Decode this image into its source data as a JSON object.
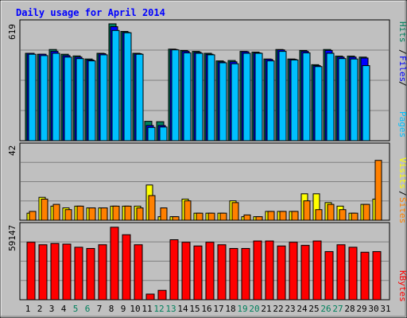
{
  "chart_data": [
    {
      "type": "bar",
      "panel": "hits-files-pages",
      "title": "Daily usage for April 2014",
      "ymax_label": "619",
      "ylim": [
        0,
        619
      ],
      "grid": true,
      "legend_placement": "right",
      "legend": [
        {
          "name": "Hits",
          "color": "#00805c"
        },
        {
          "name": "Files",
          "color": "#0000ff"
        },
        {
          "name": "Pages",
          "color": "#00c0ff"
        }
      ],
      "categories": [
        "1",
        "2",
        "3",
        "4",
        "5",
        "6",
        "7",
        "8",
        "9",
        "10",
        "11",
        "12",
        "13",
        "14",
        "15",
        "16",
        "17",
        "18",
        "19",
        "20",
        "21",
        "22",
        "23",
        "24",
        "25",
        "26",
        "27",
        "28",
        "29",
        "30",
        "31"
      ],
      "series": [
        {
          "name": "Hits",
          "color": "#00805c",
          "values": [
            460,
            455,
            480,
            455,
            446,
            430,
            460,
            615,
            575,
            460,
            102,
            100,
            482,
            475,
            470,
            460,
            420,
            422,
            470,
            466,
            430,
            480,
            430,
            475,
            400,
            480,
            445,
            445,
            440,
            null,
            null
          ]
        },
        {
          "name": "Files",
          "color": "#0000ff",
          "values": [
            460,
            455,
            470,
            448,
            440,
            425,
            458,
            600,
            570,
            458,
            80,
            80,
            480,
            470,
            465,
            455,
            415,
            415,
            468,
            462,
            428,
            478,
            428,
            470,
            395,
            475,
            440,
            440,
            435,
            null,
            null
          ]
        },
        {
          "name": "Pages",
          "color": "#00c0ff",
          "values": [
            455,
            448,
            460,
            440,
            432,
            420,
            452,
            580,
            568,
            455,
            70,
            72,
            478,
            462,
            460,
            452,
            410,
            405,
            460,
            460,
            420,
            470,
            425,
            462,
            390,
            460,
            432,
            430,
            395,
            null,
            null
          ]
        }
      ]
    },
    {
      "type": "bar",
      "panel": "visits-sites",
      "ymax_label": "42",
      "ylim": [
        0,
        42
      ],
      "grid": true,
      "legend_placement": "right",
      "legend": [
        {
          "name": "Visits",
          "color": "#ffff00"
        },
        {
          "name": "Sites",
          "color": "#ff8000"
        }
      ],
      "categories": [
        "1",
        "2",
        "3",
        "4",
        "5",
        "6",
        "7",
        "8",
        "9",
        "10",
        "11",
        "12",
        "13",
        "14",
        "15",
        "16",
        "17",
        "18",
        "19",
        "20",
        "21",
        "22",
        "23",
        "24",
        "25",
        "26",
        "27",
        "28",
        "29",
        "30",
        "31"
      ],
      "series": [
        {
          "name": "Visits",
          "color": "#ffff00",
          "values": [
            4,
            13,
            8,
            7,
            8,
            7,
            7,
            8,
            8,
            8,
            20,
            2,
            2,
            12,
            4,
            4,
            4,
            11,
            2,
            2,
            5,
            5,
            5,
            15,
            15,
            10,
            8,
            4,
            9,
            12,
            null
          ]
        },
        {
          "name": "Sites",
          "color": "#ff8000",
          "values": [
            5,
            12,
            9,
            6,
            8,
            7,
            7,
            8,
            8,
            7,
            14,
            7,
            2,
            11,
            4,
            4,
            4,
            10,
            3,
            2,
            5,
            5,
            5,
            11,
            6,
            9,
            6,
            4,
            9,
            34,
            null
          ]
        }
      ]
    },
    {
      "type": "bar",
      "panel": "kbytes",
      "ymax_label": "59147",
      "ylim": [
        0,
        59147
      ],
      "grid": true,
      "legend_placement": "right",
      "legend": [
        {
          "name": "KBytes",
          "color": "#ff0000"
        }
      ],
      "categories": [
        "1",
        "2",
        "3",
        "4",
        "5",
        "6",
        "7",
        "8",
        "9",
        "10",
        "11",
        "12",
        "13",
        "14",
        "15",
        "16",
        "17",
        "18",
        "19",
        "20",
        "21",
        "22",
        "23",
        "24",
        "25",
        "26",
        "27",
        "28",
        "29",
        "30",
        "31"
      ],
      "series": [
        {
          "name": "KBytes",
          "color": "#ff0000",
          "values": [
            46000,
            44000,
            45000,
            44500,
            42000,
            41000,
            44000,
            58000,
            52000,
            44000,
            4500,
            7500,
            48000,
            46000,
            43000,
            46000,
            44000,
            41000,
            41000,
            47000,
            47000,
            43000,
            46000,
            43500,
            47000,
            38500,
            44000,
            42000,
            38000,
            38500,
            null
          ]
        }
      ]
    }
  ],
  "x_axis": {
    "labels": [
      "1",
      "2",
      "3",
      "4",
      "5",
      "6",
      "7",
      "8",
      "9",
      "10",
      "11",
      "12",
      "13",
      "14",
      "15",
      "16",
      "17",
      "18",
      "19",
      "20",
      "21",
      "22",
      "23",
      "24",
      "25",
      "26",
      "27",
      "28",
      "29",
      "30",
      "31"
    ],
    "weekend_days": [
      "5",
      "6",
      "12",
      "13",
      "19",
      "20",
      "26",
      "27"
    ],
    "weekday_color": "#000000",
    "weekend_color": "#00805c"
  },
  "colors": {
    "title": "#0000ff",
    "background": "#c0c0c0",
    "panel_border": "#000000",
    "bar_outline": "#000000"
  }
}
